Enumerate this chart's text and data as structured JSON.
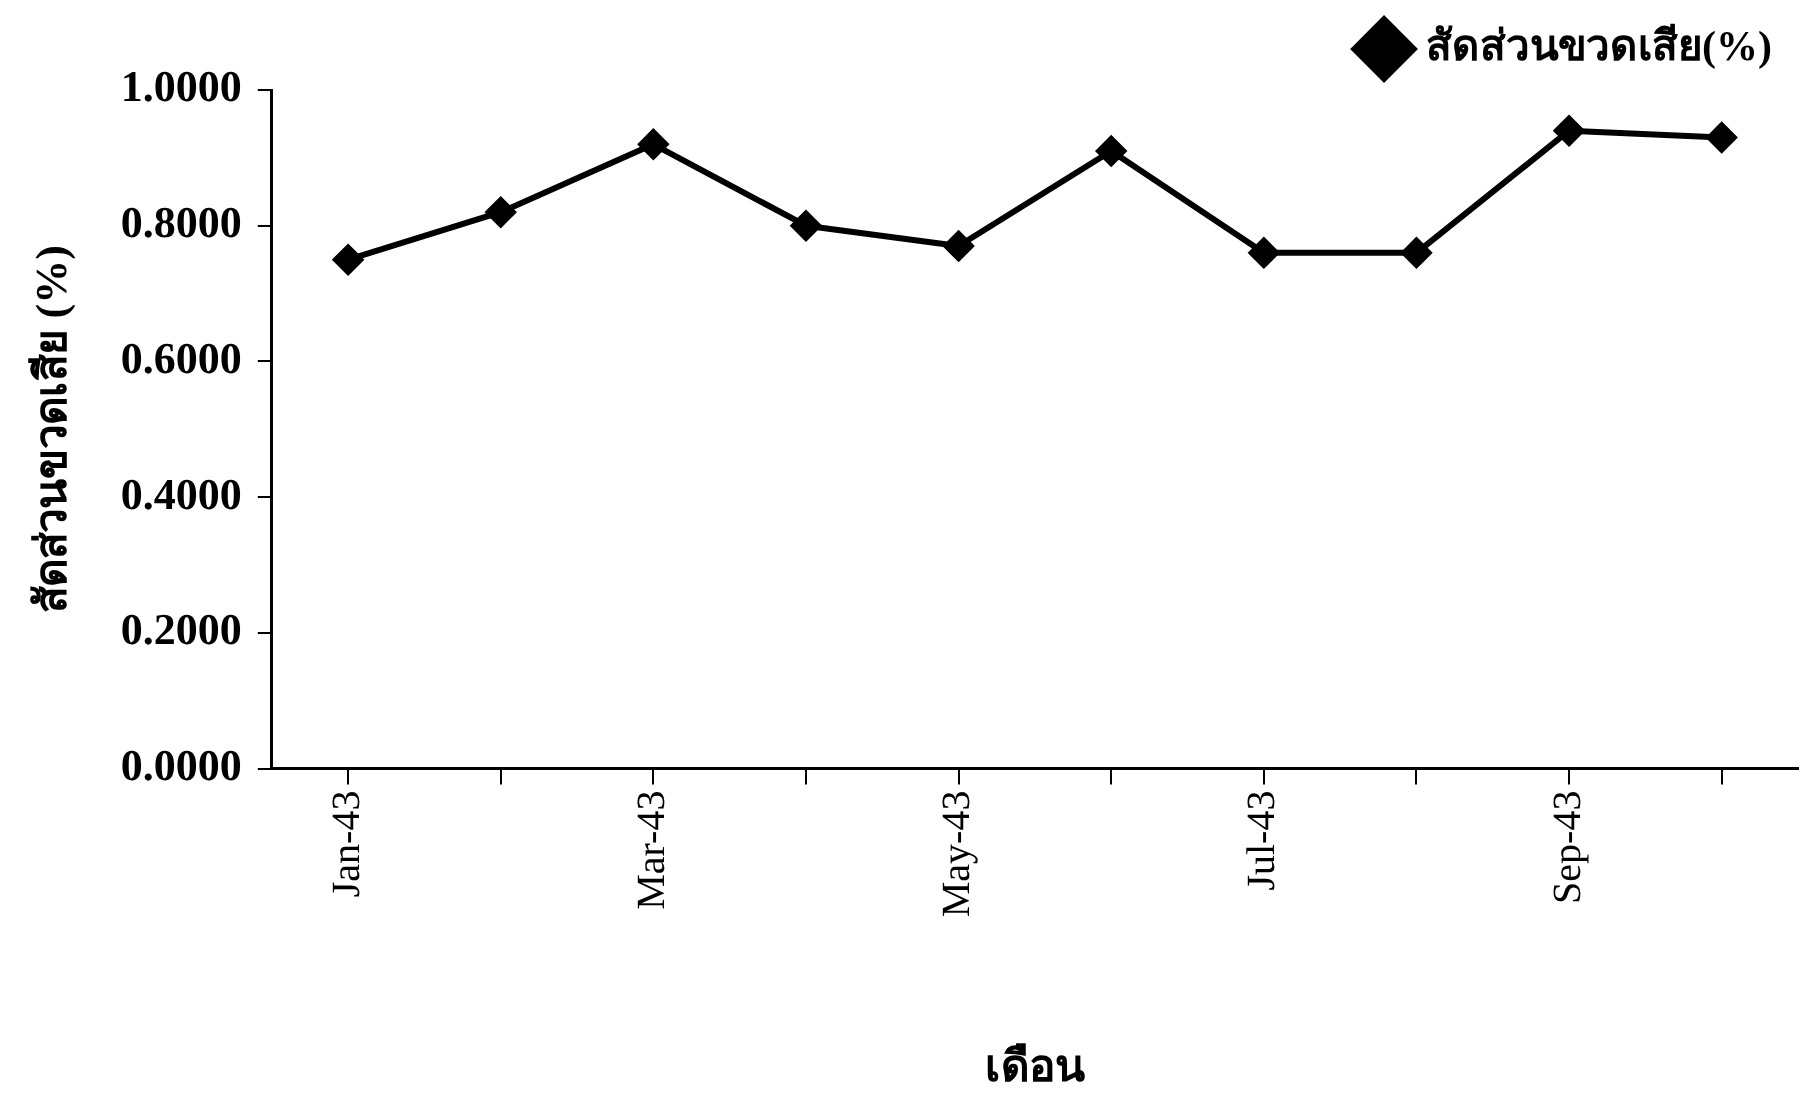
{
  "chart_data": {
    "type": "line",
    "xlabel": "เดือน",
    "ylabel": "สัดส่วนขวดเสีย (%)",
    "categories": [
      "Jan-43",
      null,
      "Mar-43",
      null,
      "May-43",
      null,
      "Jul-43",
      null,
      "Sep-43",
      null
    ],
    "series": [
      {
        "name": "สัดส่วนขวดเสีย(%)",
        "color": "#000000",
        "values": [
          0.75,
          0.82,
          0.92,
          0.8,
          0.77,
          0.91,
          0.76,
          0.76,
          0.94,
          0.93
        ]
      }
    ],
    "ylim": [
      0,
      1
    ],
    "yticks": [
      {
        "value": 0,
        "label": "0.0000"
      },
      {
        "value": 0.2,
        "label": "0.2000"
      },
      {
        "value": 0.4,
        "label": "0.4000"
      },
      {
        "value": 0.6,
        "label": "0.6000"
      },
      {
        "value": 0.8,
        "label": "0.8000"
      },
      {
        "value": 1,
        "label": "1.0000"
      }
    ],
    "grid": false,
    "legend": "top right",
    "marker": "diamond",
    "line_style": "solid"
  }
}
